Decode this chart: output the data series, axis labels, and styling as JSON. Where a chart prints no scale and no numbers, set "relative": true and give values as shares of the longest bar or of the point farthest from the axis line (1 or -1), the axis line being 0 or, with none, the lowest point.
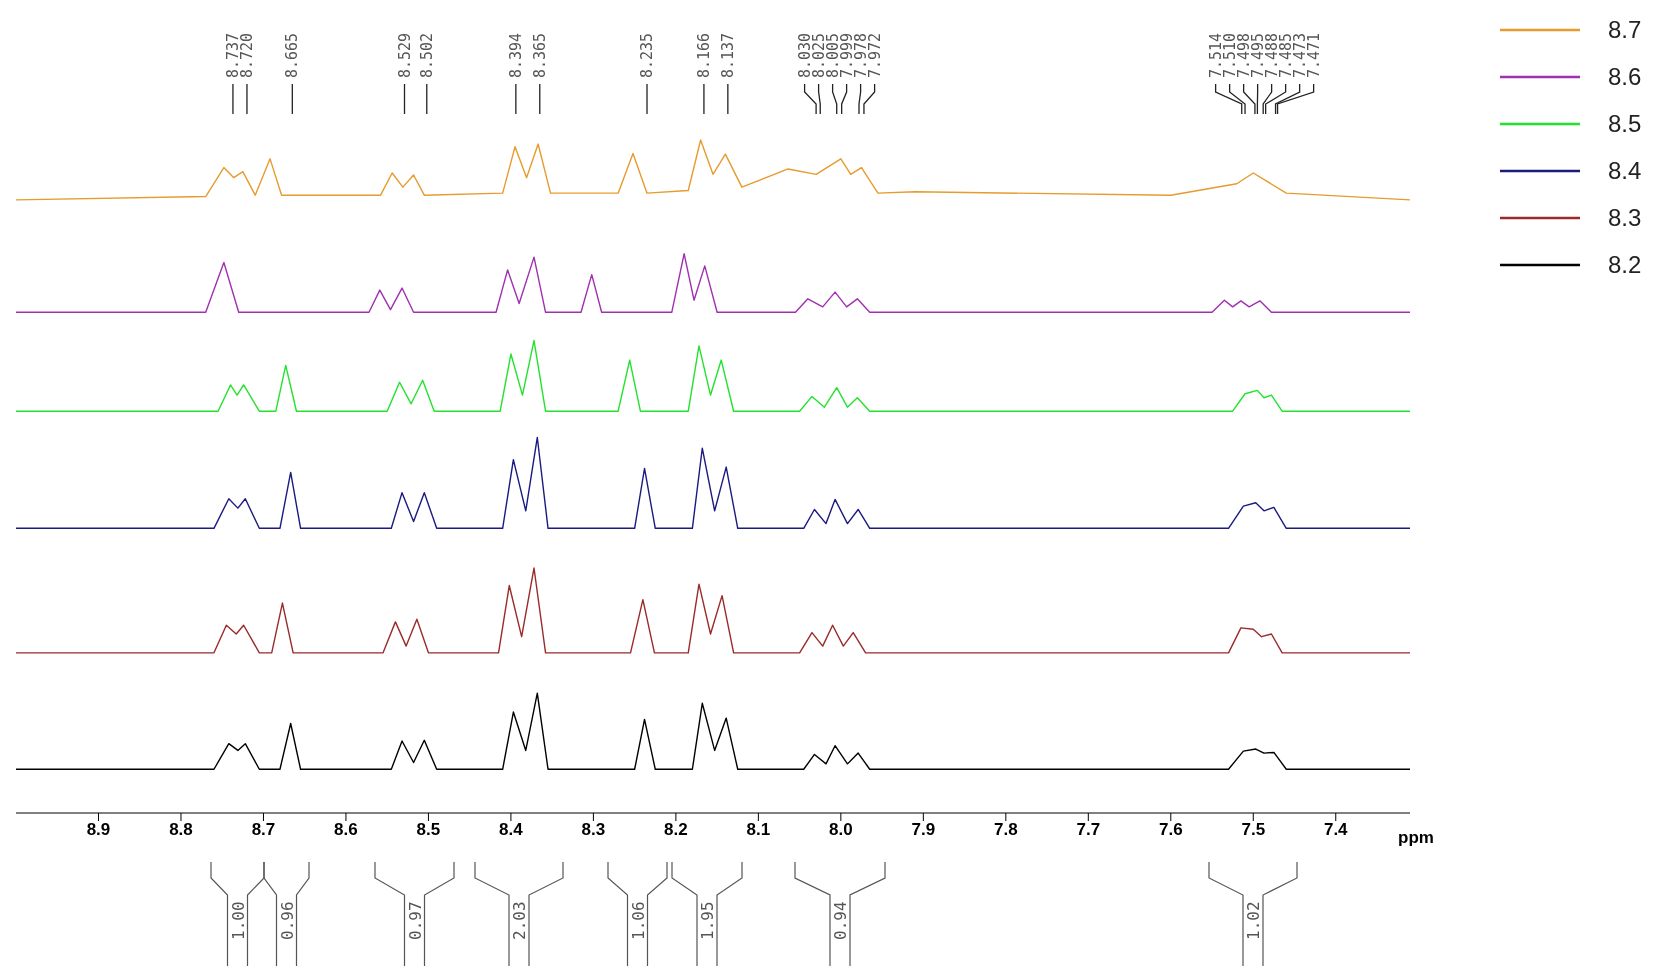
{
  "chart_data": {
    "type": "line",
    "relative": true,
    "xlabel": "ppm",
    "xlim": [
      9.0,
      7.31
    ],
    "xticks": [
      8.9,
      8.8,
      8.7,
      8.6,
      8.5,
      8.4,
      8.3,
      8.2,
      8.1,
      {
        "value": 8,
        "label": "8.0"
      },
      7.9,
      7.8,
      7.7,
      7.6,
      7.5,
      7.4
    ],
    "legend": "top right",
    "series": [
      {
        "name": "8.7",
        "color": "#e69b2e",
        "x": [
          9.0,
          8.77,
          8.748,
          8.736,
          8.725,
          8.71,
          8.692,
          8.678,
          8.558,
          8.544,
          8.531,
          8.518,
          8.505,
          8.41,
          8.395,
          8.381,
          8.367,
          8.352,
          8.27,
          8.252,
          8.235,
          8.185,
          8.17,
          8.155,
          8.14,
          8.12,
          8.064,
          8.03,
          8.0,
          7.988,
          7.975,
          7.955,
          7.91,
          7.6,
          7.52,
          7.5,
          7.46,
          7.31
        ],
        "values": [
          0.911,
          0.916,
          0.959,
          0.944,
          0.953,
          0.918,
          0.972,
          0.918,
          0.918,
          0.951,
          0.93,
          0.948,
          0.918,
          0.921,
          0.99,
          0.944,
          0.994,
          0.921,
          0.921,
          0.98,
          0.921,
          0.925,
          1.0,
          0.949,
          0.979,
          0.93,
          0.957,
          0.949,
          0.972,
          0.949,
          0.959,
          0.921,
          0.923,
          0.918,
          0.935,
          0.951,
          0.921,
          0.911
        ]
      },
      {
        "name": "8.6",
        "color": "#a030b0",
        "x": [
          9.0,
          8.77,
          8.748,
          8.73,
          8.572,
          8.559,
          8.546,
          8.532,
          8.518,
          8.418,
          8.404,
          8.39,
          8.372,
          8.358,
          8.315,
          8.302,
          8.29,
          8.205,
          8.19,
          8.178,
          8.165,
          8.15,
          8.055,
          8.04,
          8.022,
          8.007,
          7.993,
          7.98,
          7.965,
          7.55,
          7.535,
          7.525,
          7.515,
          7.505,
          7.492,
          7.478,
          7.31
        ],
        "values": [
          0.744,
          0.744,
          0.818,
          0.744,
          0.744,
          0.777,
          0.748,
          0.78,
          0.744,
          0.744,
          0.807,
          0.757,
          0.826,
          0.744,
          0.744,
          0.8,
          0.744,
          0.744,
          0.831,
          0.762,
          0.813,
          0.744,
          0.744,
          0.764,
          0.752,
          0.774,
          0.752,
          0.764,
          0.744,
          0.744,
          0.762,
          0.752,
          0.761,
          0.752,
          0.761,
          0.744,
          0.744
        ]
      },
      {
        "name": "8.5",
        "color": "#22e22e",
        "x": [
          9.0,
          8.755,
          8.74,
          8.732,
          8.724,
          8.705,
          8.685,
          8.673,
          8.66,
          8.55,
          8.535,
          8.521,
          8.507,
          8.493,
          8.413,
          8.4,
          8.386,
          8.372,
          8.358,
          8.27,
          8.256,
          8.243,
          8.185,
          8.172,
          8.158,
          8.145,
          8.13,
          8.05,
          8.035,
          8.02,
          8.005,
          7.992,
          7.98,
          7.965,
          7.525,
          7.51,
          7.495,
          7.487,
          7.478,
          7.465,
          7.31
        ],
        "values": [
          0.597,
          0.597,
          0.636,
          0.621,
          0.636,
          0.597,
          0.597,
          0.665,
          0.597,
          0.597,
          0.64,
          0.608,
          0.643,
          0.597,
          0.597,
          0.682,
          0.621,
          0.702,
          0.597,
          0.597,
          0.673,
          0.597,
          0.597,
          0.694,
          0.621,
          0.673,
          0.597,
          0.597,
          0.619,
          0.603,
          0.632,
          0.603,
          0.617,
          0.597,
          0.597,
          0.623,
          0.628,
          0.617,
          0.621,
          0.597,
          0.597
        ]
      },
      {
        "name": "8.4",
        "color": "#1a1a80",
        "x": [
          9.0,
          8.76,
          8.742,
          8.731,
          8.722,
          8.705,
          8.68,
          8.667,
          8.655,
          8.545,
          8.532,
          8.518,
          8.505,
          8.49,
          8.41,
          8.397,
          8.382,
          8.368,
          8.355,
          8.25,
          8.238,
          8.225,
          8.18,
          8.168,
          8.153,
          8.139,
          8.125,
          8.045,
          8.032,
          8.018,
          8.007,
          7.992,
          7.979,
          7.965,
          7.53,
          7.512,
          7.497,
          7.487,
          7.475,
          7.46,
          7.31
        ],
        "values": [
          0.423,
          0.423,
          0.467,
          0.453,
          0.467,
          0.423,
          0.423,
          0.506,
          0.423,
          0.423,
          0.476,
          0.433,
          0.476,
          0.423,
          0.423,
          0.525,
          0.449,
          0.558,
          0.423,
          0.423,
          0.512,
          0.423,
          0.423,
          0.542,
          0.449,
          0.514,
          0.423,
          0.423,
          0.451,
          0.43,
          0.466,
          0.43,
          0.451,
          0.423,
          0.423,
          0.456,
          0.461,
          0.449,
          0.454,
          0.423,
          0.423
        ]
      },
      {
        "name": "8.3",
        "color": "#9b2a2a",
        "x": [
          9.0,
          8.76,
          8.745,
          8.733,
          8.724,
          8.705,
          8.69,
          8.677,
          8.664,
          8.555,
          8.54,
          8.527,
          8.514,
          8.5,
          8.415,
          8.402,
          8.387,
          8.372,
          8.358,
          8.255,
          8.24,
          8.226,
          8.185,
          8.172,
          8.158,
          8.144,
          8.13,
          8.05,
          8.035,
          8.022,
          8.01,
          7.997,
          7.985,
          7.97,
          7.53,
          7.515,
          7.5,
          7.49,
          7.478,
          7.465,
          7.31
        ],
        "values": [
          0.238,
          0.238,
          0.279,
          0.266,
          0.279,
          0.238,
          0.238,
          0.312,
          0.238,
          0.238,
          0.284,
          0.248,
          0.288,
          0.238,
          0.238,
          0.338,
          0.262,
          0.364,
          0.238,
          0.238,
          0.317,
          0.238,
          0.238,
          0.34,
          0.266,
          0.323,
          0.238,
          0.238,
          0.268,
          0.248,
          0.279,
          0.248,
          0.268,
          0.238,
          0.238,
          0.275,
          0.273,
          0.262,
          0.266,
          0.238,
          0.238
        ]
      },
      {
        "name": "8.2",
        "color": "#000000",
        "x": [
          9.0,
          8.76,
          8.742,
          8.731,
          8.722,
          8.705,
          8.68,
          8.667,
          8.655,
          8.545,
          8.532,
          8.518,
          8.505,
          8.49,
          8.41,
          8.397,
          8.382,
          8.368,
          8.355,
          8.25,
          8.238,
          8.225,
          8.18,
          8.168,
          8.153,
          8.139,
          8.125,
          8.045,
          8.032,
          8.018,
          8.007,
          7.992,
          7.979,
          7.965,
          7.53,
          7.512,
          7.497,
          7.487,
          7.475,
          7.46,
          7.31
        ],
        "values": [
          0.065,
          0.065,
          0.103,
          0.093,
          0.103,
          0.065,
          0.065,
          0.133,
          0.065,
          0.065,
          0.107,
          0.075,
          0.108,
          0.065,
          0.065,
          0.15,
          0.093,
          0.178,
          0.065,
          0.065,
          0.139,
          0.065,
          0.065,
          0.163,
          0.093,
          0.141,
          0.065,
          0.065,
          0.087,
          0.073,
          0.1,
          0.073,
          0.089,
          0.065,
          0.065,
          0.092,
          0.095,
          0.089,
          0.09,
          0.065,
          0.065
        ]
      }
    ],
    "annotations": [
      {
        "text": "8.737",
        "x": 8.737
      },
      {
        "text": "8.720",
        "x": 8.72
      },
      {
        "text": "8.665",
        "x": 8.665
      },
      {
        "text": "8.529",
        "x": 8.529
      },
      {
        "text": "8.502",
        "x": 8.502
      },
      {
        "text": "8.394",
        "x": 8.394
      },
      {
        "text": "8.365",
        "x": 8.365
      },
      {
        "text": "8.235",
        "x": 8.235
      },
      {
        "text": "8.166",
        "x": 8.166
      },
      {
        "text": "8.137",
        "x": 8.137
      },
      {
        "text": "8.030",
        "x": 8.03
      },
      {
        "text": "8.025",
        "x": 8.025
      },
      {
        "text": "8.005",
        "x": 8.005
      },
      {
        "text": "7.999",
        "x": 7.999
      },
      {
        "text": "7.978",
        "x": 7.978
      },
      {
        "text": "7.972",
        "x": 7.972
      },
      {
        "text": "7.514",
        "x": 7.514
      },
      {
        "text": "7.510",
        "x": 7.51
      },
      {
        "text": "7.498",
        "x": 7.498
      },
      {
        "text": "7.495",
        "x": 7.495
      },
      {
        "text": "7.488",
        "x": 7.488
      },
      {
        "text": "7.485",
        "x": 7.485
      },
      {
        "text": "7.473",
        "x": 7.473
      },
      "7.471",
      "1.00",
      "0.96",
      "0.97",
      "2.03",
      "1.06",
      "1.95",
      "0.94",
      "1.02"
    ]
  }
}
